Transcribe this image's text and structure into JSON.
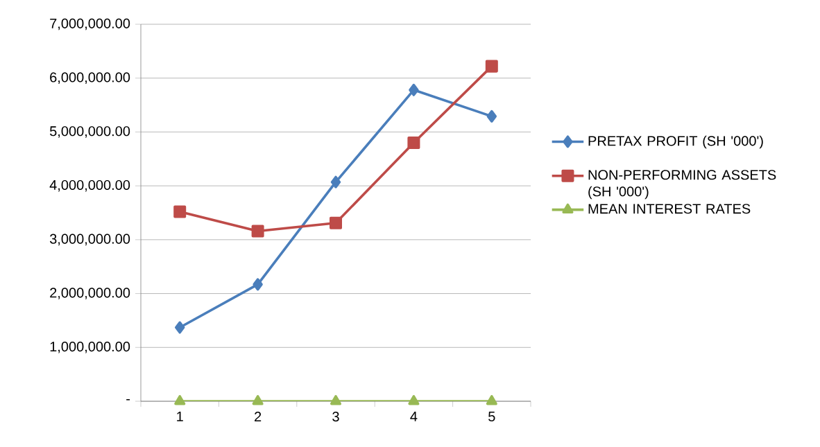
{
  "chart_data": {
    "type": "line",
    "categories": [
      "1",
      "2",
      "3",
      "4",
      "5"
    ],
    "series": [
      {
        "name": "PRETAX PROFIT (SH '000')",
        "color": "#4a7ebb",
        "marker": "diamond",
        "values": [
          1370000,
          2170000,
          4070000,
          5780000,
          5290000
        ]
      },
      {
        "name": "NON-PERFORMING ASSETS (SH '000')",
        "color": "#be4b48",
        "marker": "square",
        "values": [
          3520000,
          3160000,
          3310000,
          4800000,
          6220000
        ]
      },
      {
        "name": "MEAN INTEREST RATES",
        "color": "#98b954",
        "marker": "triangle",
        "values": [
          0,
          0,
          0,
          0,
          0
        ]
      }
    ],
    "ylim": [
      0,
      7000000
    ],
    "yticks": [
      {
        "value": 0,
        "label": "-"
      },
      {
        "value": 1000000,
        "label": "1,000,000.00"
      },
      {
        "value": 2000000,
        "label": "2,000,000.00"
      },
      {
        "value": 3000000,
        "label": "3,000,000.00"
      },
      {
        "value": 4000000,
        "label": "4,000,000.00"
      },
      {
        "value": 5000000,
        "label": "5,000,000.00"
      },
      {
        "value": 6000000,
        "label": "6,000,000.00"
      },
      {
        "value": 7000000,
        "label": "7,000,000.00"
      }
    ],
    "grid": "y",
    "legend": "right",
    "line_style": "solid"
  }
}
